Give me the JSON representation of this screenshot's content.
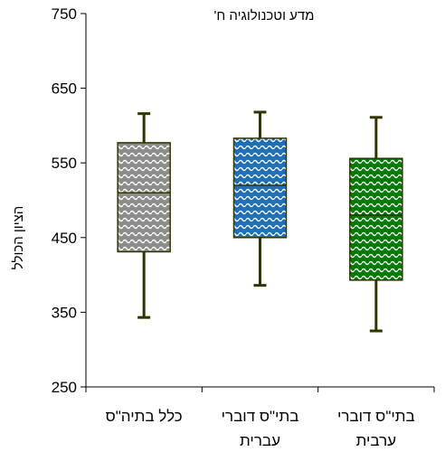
{
  "chart_data": {
    "type": "boxplot",
    "title": "מדע וטכנולוגיה ח'",
    "ylabel": "הציון הכולל",
    "xlabel": "",
    "ylim": [
      250,
      750
    ],
    "yticks": [
      250,
      350,
      450,
      550,
      650,
      750
    ],
    "grid": false,
    "categories": [
      [
        "כלל בתיה\"ס"
      ],
      [
        "בתי\"ס דוברי",
        "עברית"
      ],
      [
        "בתי\"ס דוברי",
        "ערבית"
      ]
    ],
    "boxes": [
      {
        "min": 343,
        "q1": 431,
        "median": 510,
        "q3": 577,
        "max": 616,
        "color": "#8c8c8c",
        "pattern": "wave-gray"
      },
      {
        "min": 386,
        "q1": 450,
        "median": 520,
        "q3": 583,
        "max": 618,
        "color": "#1f77b4",
        "pattern": "wave-blue"
      },
      {
        "min": 325,
        "q1": 393,
        "median": 480,
        "q3": 556,
        "max": 611,
        "color": "#007a00",
        "pattern": "wave-green"
      }
    ],
    "whisker_color": "#333300"
  }
}
